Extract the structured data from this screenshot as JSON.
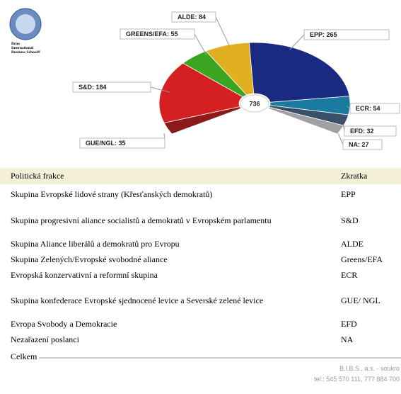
{
  "logo": {
    "lines": [
      "Brno",
      "International",
      "Business School®"
    ]
  },
  "chart_data": {
    "type": "hemicycle",
    "values": [
      35,
      184,
      55,
      84,
      265,
      54,
      32,
      27
    ],
    "value_labels": [
      "GUE/NGL: 35",
      "S&D: 184",
      "GREENS/EFA: 55",
      "ALDE: 84",
      "EPP: 265",
      "ECR: 54",
      "EFD: 32",
      "NA: 27"
    ],
    "colors": [
      "#8b1a1a",
      "#d42020",
      "#3aa520",
      "#e0b020",
      "#1a2a80",
      "#1a7aa0",
      "#3a5068",
      "#a0a0a0"
    ],
    "total": 736
  },
  "table": {
    "header": [
      "Politická frakce",
      "Zkratka"
    ],
    "rows": [
      [
        "Skupina Evropské lidové strany (Křesťanských demokratů)",
        "EPP"
      ],
      [
        "Skupina progresivní aliance socialistů a demokratů v Evropském parlamentu",
        "S&D"
      ],
      [
        "Skupina Aliance liberálů a demokratů pro Evropu",
        "ALDE"
      ],
      [
        "Skupina Zelených/Evropské svobodné aliance",
        "Greens/EFA"
      ],
      [
        "Evropská konzervativní a reformní skupina",
        "ECR"
      ],
      [
        "Skupina konfederace Evropské sjednocené levice a Severské zelené levice",
        "GUE/ NGL"
      ],
      [
        "Evropa Svobody a Demokracie",
        "EFD"
      ],
      [
        "Nezařazení poslanci",
        "NA"
      ]
    ],
    "total_label": "Celkem"
  },
  "footer": {
    "line1": "B.I.B.S., a.s. - soukro",
    "line2": "tel.: 545 570 111, 777 884 700"
  }
}
